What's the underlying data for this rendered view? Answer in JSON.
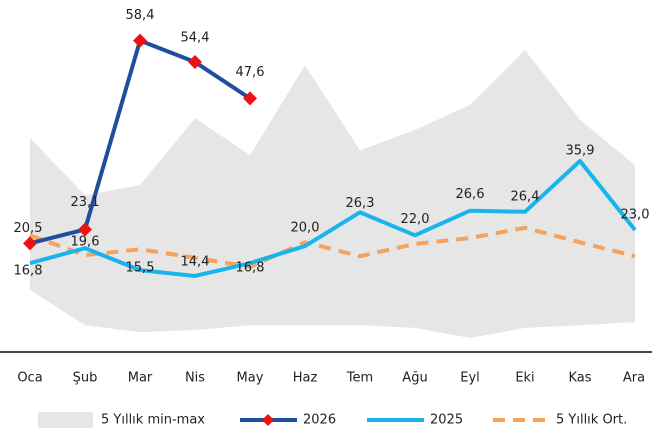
{
  "chart_data": {
    "type": "line",
    "categories": [
      "Oca",
      "Şub",
      "Mar",
      "Nis",
      "May",
      "Haz",
      "Tem",
      "Ağu",
      "Eyl",
      "Eki",
      "Kas",
      "Ara"
    ],
    "ylim": [
      0,
      66
    ],
    "series": [
      {
        "name": "5 Yıllık min-max",
        "type": "area",
        "color": "#e6e6e6",
        "high": [
          40.2,
          29.5,
          31.4,
          43.9,
          37.0,
          53.8,
          37.9,
          41.7,
          46.4,
          56.6,
          43.6,
          35.1
        ],
        "low": [
          11.8,
          5.2,
          3.9,
          4.3,
          5.2,
          5.2,
          5.2,
          4.7,
          2.8,
          4.7,
          5.2,
          5.8
        ]
      },
      {
        "name": "2026",
        "type": "line",
        "color": "#1f4e9c",
        "marker_color": "#ee1111",
        "values": [
          20.5,
          23.1,
          58.4,
          54.4,
          47.6,
          null,
          null,
          null,
          null,
          null,
          null,
          null
        ],
        "value_labels": [
          "20,5",
          "23,1",
          "58,4",
          "54,4",
          "47,6",
          null,
          null,
          null,
          null,
          null,
          null,
          null
        ]
      },
      {
        "name": "2025",
        "type": "line",
        "color": "#19b4ec",
        "values": [
          16.8,
          19.6,
          15.5,
          14.4,
          16.8,
          20.0,
          26.3,
          22.0,
          26.6,
          26.4,
          35.9,
          23.0
        ],
        "value_labels": [
          "16,8",
          "19,6",
          "15,5",
          "14,4",
          "16,8",
          "20,0",
          "26,3",
          "22,0",
          "26,6",
          "26,4",
          "35,9",
          "23,0"
        ]
      },
      {
        "name": "5 Yıllık Ort.",
        "type": "dashed",
        "color": "#f5a25d",
        "values": [
          22.0,
          18.3,
          19.4,
          17.8,
          16.1,
          20.7,
          18.1,
          20.4,
          21.5,
          23.4,
          20.7,
          18.1
        ]
      }
    ]
  }
}
